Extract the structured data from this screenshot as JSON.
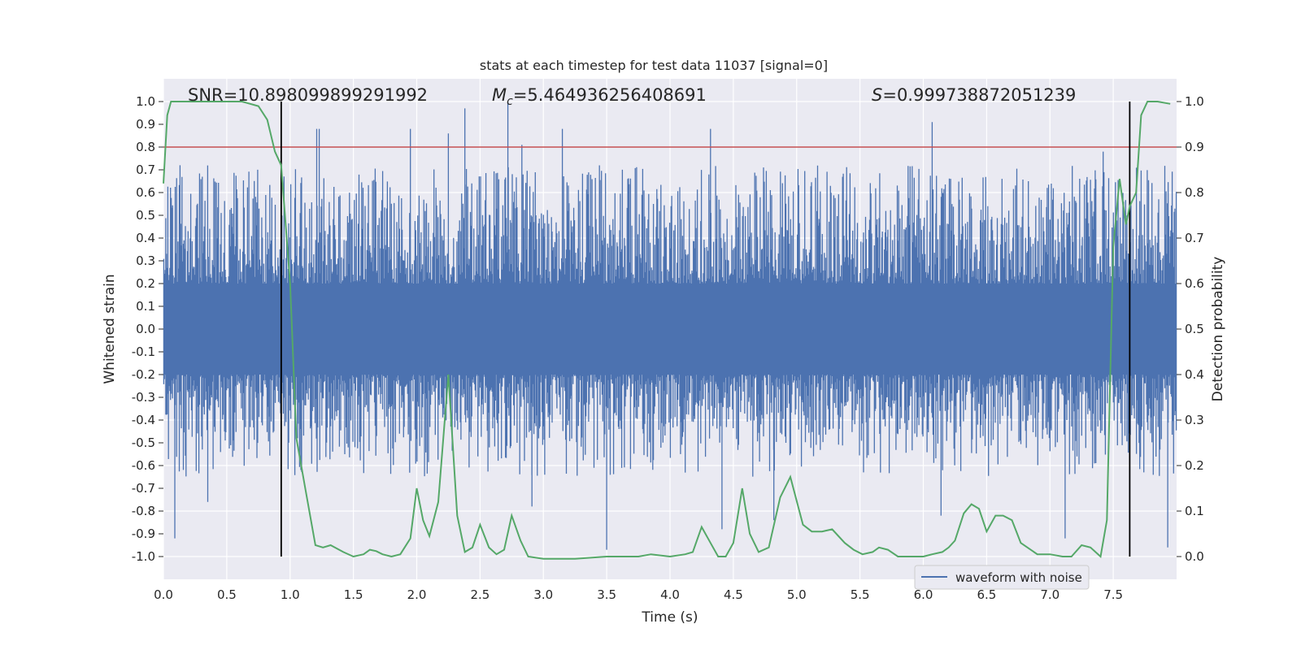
{
  "chart_data": {
    "type": "line",
    "title": "stats at each timestep for test data 11037 [signal=0]",
    "xlabel": "Time (s)",
    "ylabel_left": "Whitened strain",
    "ylabel_right": "Detection probability",
    "xlim": [
      0.0,
      8.0
    ],
    "ylim_left": [
      -1.1,
      1.1
    ],
    "ylim_right": [
      -0.05,
      1.05
    ],
    "x_ticks": [
      "0.0",
      "0.5",
      "1.0",
      "1.5",
      "2.0",
      "2.5",
      "3.0",
      "3.5",
      "4.0",
      "4.5",
      "5.0",
      "5.5",
      "6.0",
      "6.5",
      "7.0",
      "7.5"
    ],
    "y_ticks_left": [
      "1.0",
      "0.9",
      "0.8",
      "0.7",
      "0.6",
      "0.5",
      "0.4",
      "0.3",
      "0.2",
      "0.1",
      "0.0",
      "-0.1",
      "-0.2",
      "-0.3",
      "-0.4",
      "-0.5",
      "-0.6",
      "-0.7",
      "-0.8",
      "-0.9",
      "-1.0"
    ],
    "y_ticks_right": [
      "1.0",
      "0.9",
      "0.8",
      "0.7",
      "0.6",
      "0.5",
      "0.4",
      "0.3",
      "0.2",
      "0.1",
      "0.0"
    ],
    "grid": true,
    "legend_position": "lower-right",
    "annotations": {
      "snr": "SNR=10.898099899291992",
      "mc_symbol": "M",
      "mc_sub": "c",
      "mc_value": "=5.464936256408691",
      "s_symbol": "S",
      "s_value": "=0.999738872051239"
    },
    "threshold": {
      "value": 0.8,
      "axis": "left",
      "color": "#c44e52"
    },
    "vertical_lines": [
      0.93,
      7.63
    ],
    "vertical_line_range": [
      -1.0,
      1.0
    ],
    "series": [
      {
        "name": "waveform with noise",
        "axis": "left",
        "color": "#4c72b0",
        "style": "dense noise, bulk between -0.2 and 0.2, spikes up to about 1.0 and down to about -0.97",
        "envelope_core": [
          -0.2,
          0.2
        ],
        "envelope_typical": [
          -0.5,
          0.6
        ],
        "peaks": [
          [
            1.21,
            0.88
          ],
          [
            1.23,
            0.88
          ],
          [
            1.95,
            0.88
          ],
          [
            2.25,
            0.86
          ],
          [
            2.38,
            0.97
          ],
          [
            2.72,
            1.0
          ],
          [
            2.83,
            0.81
          ],
          [
            3.15,
            0.88
          ],
          [
            4.32,
            0.88
          ],
          [
            6.07,
            0.91
          ],
          [
            7.42,
            0.78
          ]
        ],
        "troughs": [
          [
            0.09,
            -0.92
          ],
          [
            0.35,
            -0.76
          ],
          [
            2.91,
            -0.78
          ],
          [
            3.5,
            -0.97
          ],
          [
            4.41,
            -0.88
          ],
          [
            4.82,
            -0.84
          ],
          [
            6.14,
            -0.82
          ],
          [
            7.12,
            -0.92
          ],
          [
            7.93,
            -0.96
          ]
        ]
      },
      {
        "name": "",
        "axis": "right",
        "color": "#55a868",
        "x": [
          0.0,
          0.03,
          0.06,
          0.12,
          0.25,
          0.5,
          0.62,
          0.75,
          0.82,
          0.88,
          0.93,
          1.0,
          1.05,
          1.12,
          1.2,
          1.26,
          1.32,
          1.42,
          1.5,
          1.58,
          1.63,
          1.68,
          1.73,
          1.8,
          1.87,
          1.95,
          2.0,
          2.05,
          2.1,
          2.17,
          2.25,
          2.32,
          2.38,
          2.44,
          2.5,
          2.57,
          2.63,
          2.69,
          2.75,
          2.82,
          2.88,
          3.0,
          3.25,
          3.5,
          3.75,
          3.85,
          4.0,
          4.12,
          4.18,
          4.25,
          4.32,
          4.38,
          4.44,
          4.5,
          4.57,
          4.63,
          4.7,
          4.78,
          4.87,
          4.95,
          5.05,
          5.12,
          5.2,
          5.28,
          5.38,
          5.45,
          5.52,
          5.6,
          5.65,
          5.72,
          5.8,
          6.0,
          6.07,
          6.15,
          6.2,
          6.25,
          6.32,
          6.38,
          6.44,
          6.5,
          6.57,
          6.63,
          6.7,
          6.77,
          6.9,
          7.0,
          7.1,
          7.17,
          7.25,
          7.32,
          7.4,
          7.45,
          7.5,
          7.55,
          7.6,
          7.63,
          7.68,
          7.72,
          7.77,
          7.85,
          7.95
        ],
        "values": [
          0.82,
          0.97,
          1.0,
          1.0,
          1.0,
          1.0,
          1.0,
          0.99,
          0.96,
          0.89,
          0.86,
          0.6,
          0.26,
          0.15,
          0.025,
          0.02,
          0.025,
          0.01,
          0.0,
          0.005,
          0.015,
          0.012,
          0.005,
          0.0,
          0.005,
          0.04,
          0.15,
          0.08,
          0.045,
          0.12,
          0.4,
          0.09,
          0.01,
          0.02,
          0.07,
          0.02,
          0.005,
          0.015,
          0.09,
          0.035,
          0.0,
          -0.005,
          -0.005,
          0.0,
          0.0,
          0.005,
          0.0,
          0.005,
          0.01,
          0.065,
          0.03,
          0.0,
          0.0,
          0.03,
          0.15,
          0.05,
          0.01,
          0.02,
          0.13,
          0.175,
          0.07,
          0.055,
          0.055,
          0.06,
          0.03,
          0.015,
          0.005,
          0.01,
          0.02,
          0.015,
          0.0,
          0.0,
          0.005,
          0.01,
          0.02,
          0.035,
          0.095,
          0.115,
          0.105,
          0.055,
          0.09,
          0.09,
          0.08,
          0.03,
          0.005,
          0.005,
          0.0,
          0.0,
          0.025,
          0.02,
          0.0,
          0.08,
          0.68,
          0.83,
          0.73,
          0.77,
          0.8,
          0.97,
          1.0,
          1.0,
          0.995
        ]
      }
    ]
  }
}
